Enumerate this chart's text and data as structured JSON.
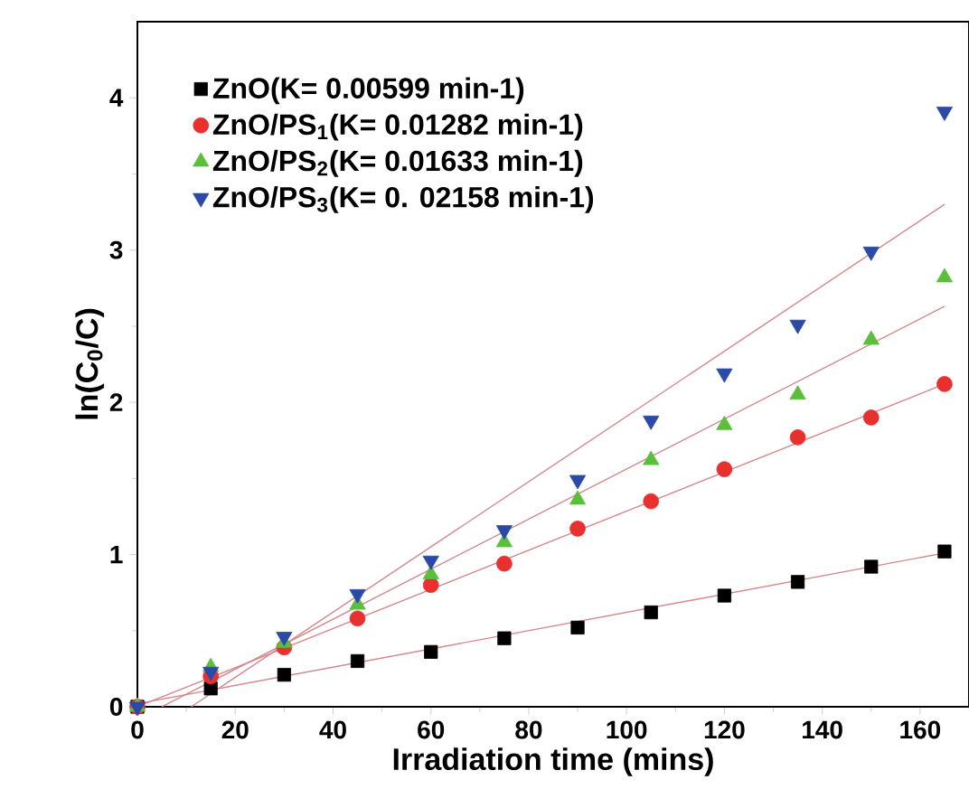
{
  "chart_data": {
    "type": "scatter",
    "xlabel": "Irradiation time (mins)",
    "ylabel": "ln(C$_{0}$/C)",
    "x": [
      0,
      15,
      30,
      45,
      60,
      75,
      90,
      105,
      120,
      135,
      150,
      165
    ],
    "series": [
      {
        "name": "ZnO(K= 0.00599 min-1)",
        "color": "#000000",
        "marker": "square",
        "values": [
          0,
          0.12,
          0.21,
          0.3,
          0.36,
          0.45,
          0.52,
          0.62,
          0.73,
          0.82,
          0.92,
          1.02
        ]
      },
      {
        "name": "ZnO/PS$_{1}$(K= 0.01282 min-1)",
        "color": "#e8312f",
        "marker": "circle",
        "values": [
          0,
          0.2,
          0.39,
          0.58,
          0.8,
          0.94,
          1.17,
          1.35,
          1.56,
          1.77,
          1.9,
          2.12
        ]
      },
      {
        "name": "ZnO/PS$_{2}$(K= 0.01633 min-1)",
        "color": "#5cbf3c",
        "marker": "triangle",
        "values": [
          0,
          0.26,
          0.42,
          0.67,
          0.87,
          1.08,
          1.36,
          1.62,
          1.85,
          2.05,
          2.41,
          2.82
        ]
      },
      {
        "name": "ZnO/PS$_{3}$(K= 0. 02158 min-1)",
        "color": "#2b4aa8",
        "marker": "triangle-down",
        "values": [
          0,
          0.23,
          0.46,
          0.74,
          0.96,
          1.16,
          1.49,
          1.88,
          2.19,
          2.51,
          2.99,
          3.91
        ]
      },
      {
        "type": "line",
        "color": "#d4888c",
        "x": [
          0,
          165
        ],
        "values": [
          0.02,
          1.01
        ]
      },
      {
        "type": "line",
        "color": "#d4888c",
        "x": [
          0,
          165
        ],
        "values": [
          0,
          2.12
        ]
      },
      {
        "type": "line",
        "color": "#d4888c",
        "x": [
          5,
          165
        ],
        "values": [
          0,
          2.63
        ]
      },
      {
        "type": "line",
        "color": "#d4888c",
        "x": [
          11,
          165
        ],
        "values": [
          0,
          3.3
        ]
      }
    ],
    "xlim": [
      0,
      170
    ],
    "ylim": [
      0,
      4.5
    ],
    "xticks": [
      0,
      20,
      40,
      60,
      80,
      100,
      120,
      140,
      160
    ],
    "yticks": [
      0,
      1,
      2,
      3,
      4
    ],
    "legend": "top left",
    "grid": false
  }
}
